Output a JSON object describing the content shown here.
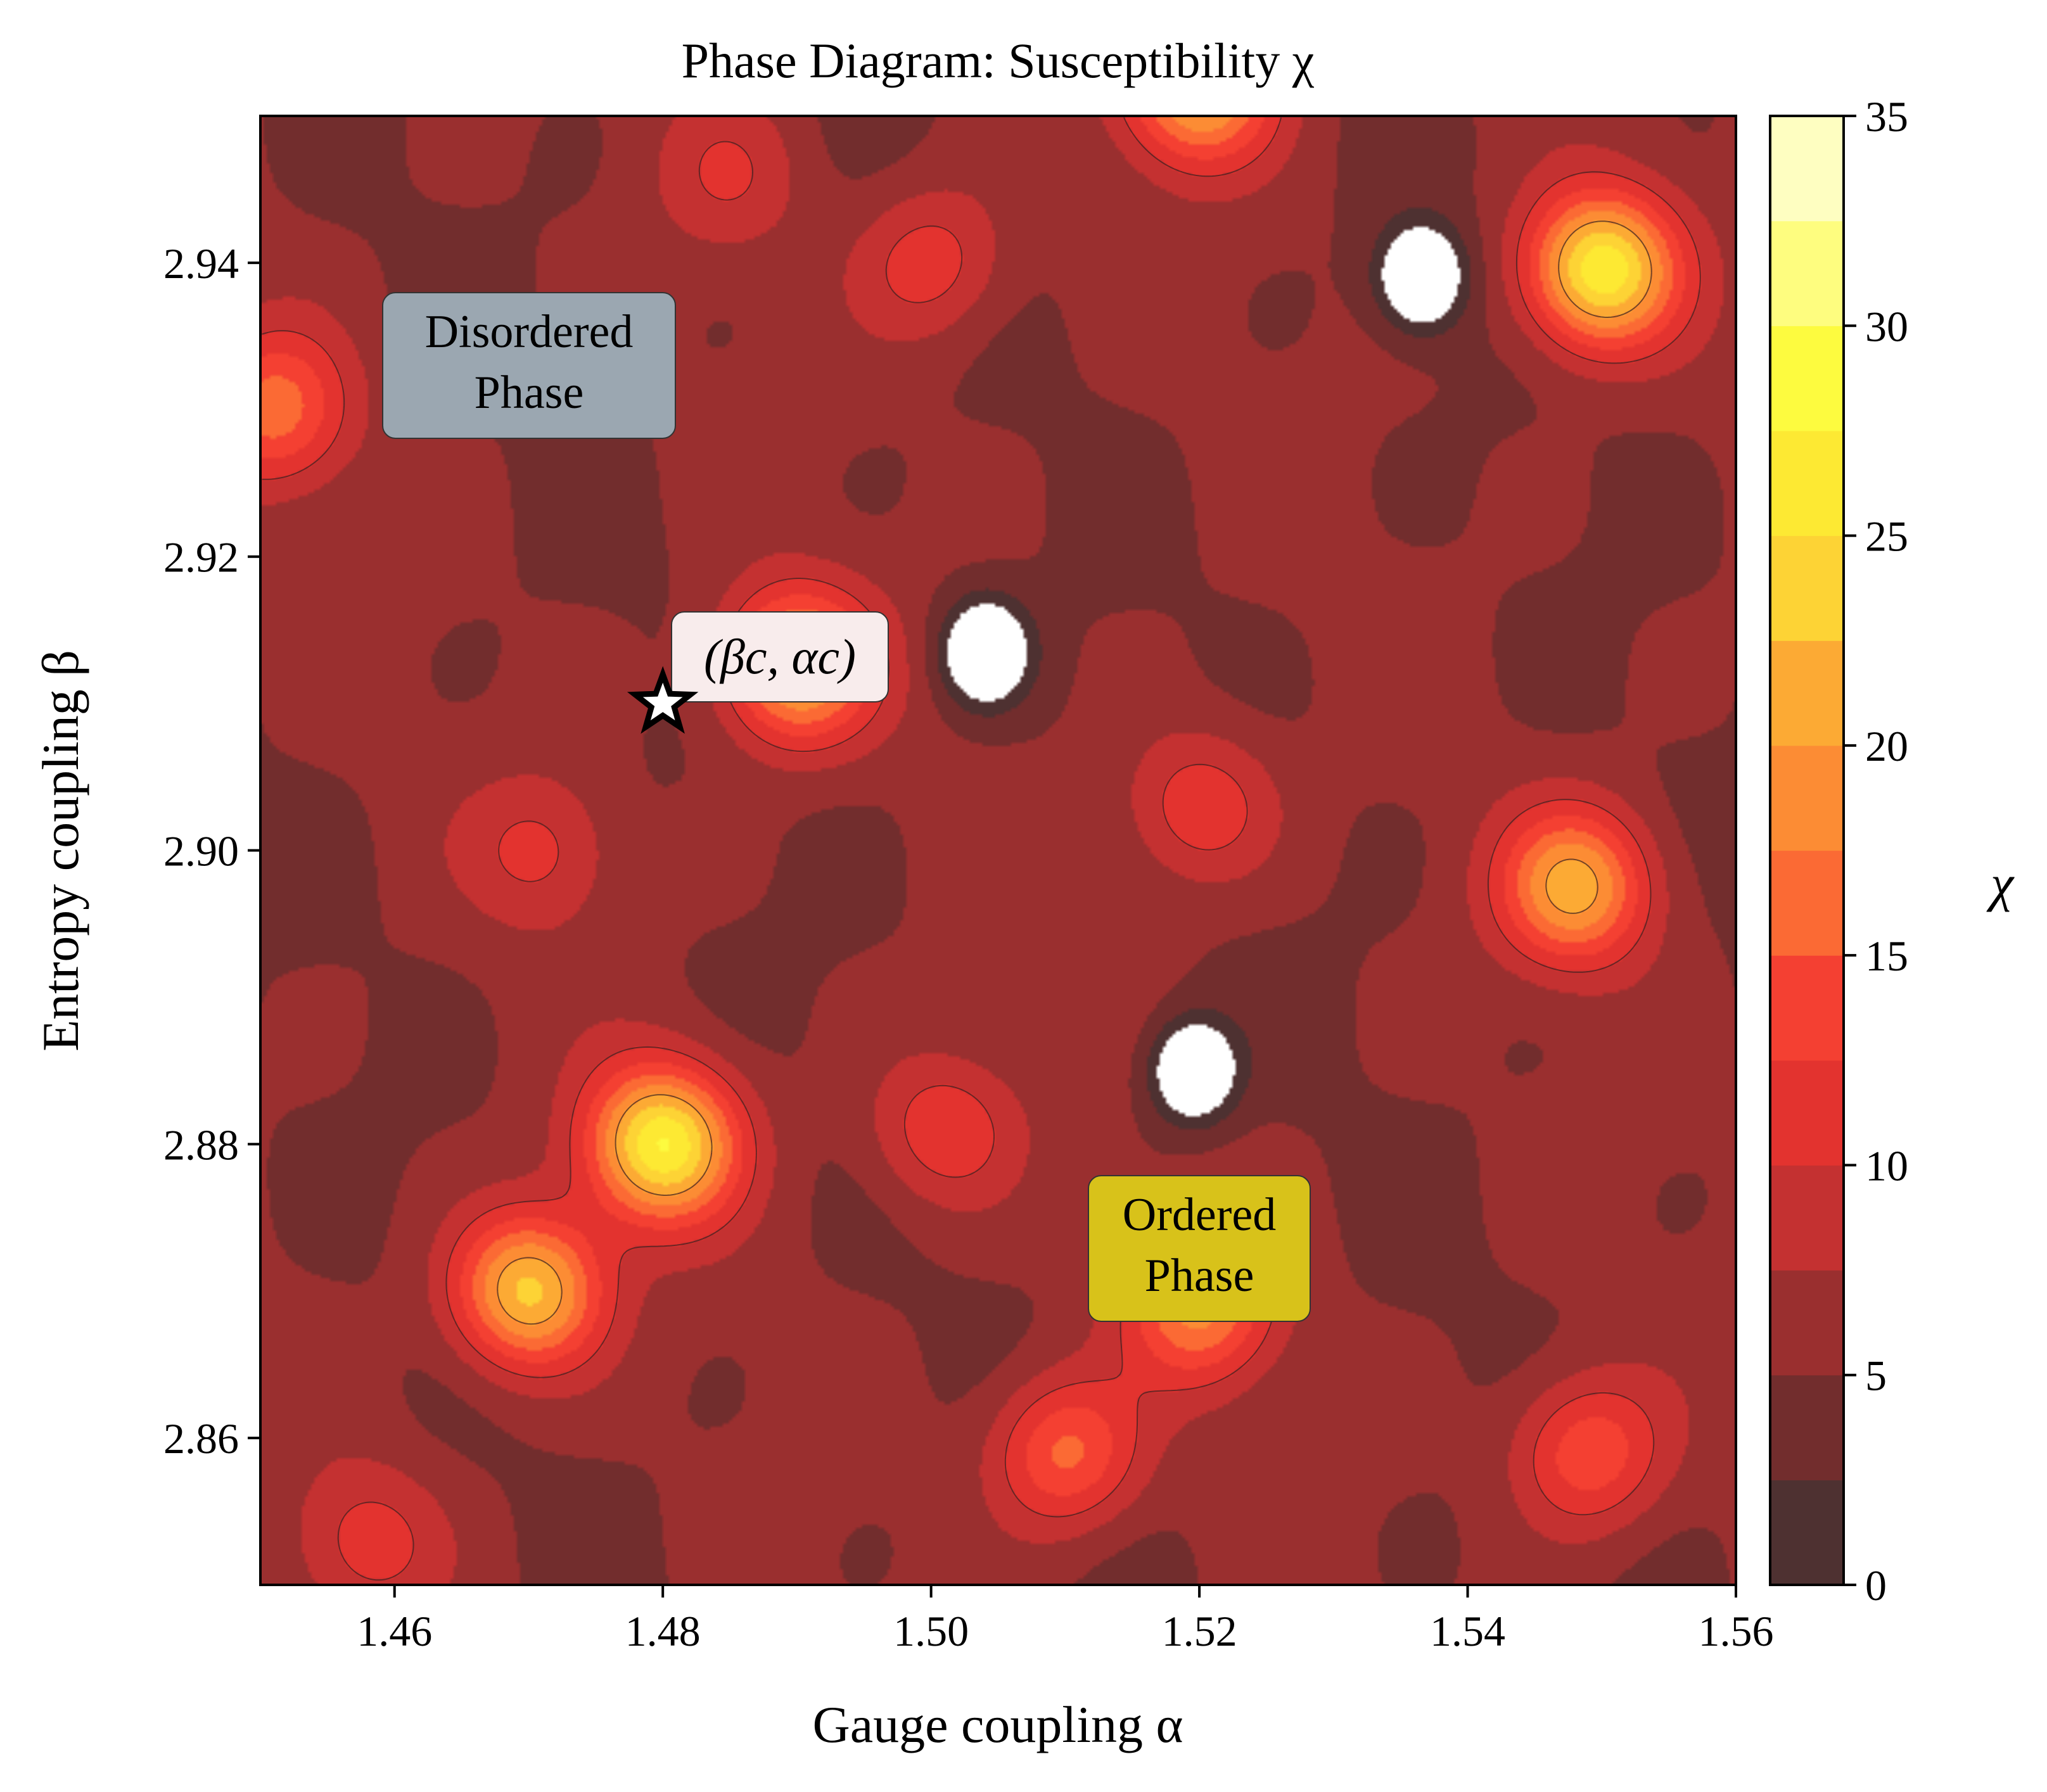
{
  "chart_data": {
    "type": "heatmap",
    "subtype": "filled-contour",
    "title": "Phase Diagram: Susceptibility χ",
    "xlabel": "Gauge coupling α",
    "ylabel": "Entropy coupling β",
    "xlim": [
      1.45,
      1.56
    ],
    "ylim": [
      2.85,
      2.95
    ],
    "xticks": [
      1.46,
      1.48,
      1.5,
      1.52,
      1.54,
      1.56
    ],
    "xtick_labels": [
      "1.46",
      "1.48",
      "1.50",
      "1.52",
      "1.54",
      "1.56"
    ],
    "yticks": [
      2.86,
      2.88,
      2.9,
      2.92,
      2.94
    ],
    "ytick_labels": [
      "2.86",
      "2.88",
      "2.90",
      "2.92",
      "2.94"
    ],
    "grid": false,
    "colormap": "hot_r",
    "colorbar": {
      "label": "χ",
      "range": [
        0,
        35
      ],
      "ticks": [
        0,
        5,
        10,
        15,
        20,
        25,
        30,
        35
      ],
      "tick_labels": [
        "0",
        "5",
        "10",
        "15",
        "20",
        "25",
        "30",
        "35"
      ],
      "levels": [
        0,
        2.5,
        5,
        7.5,
        10,
        12.5,
        15,
        17.5,
        20,
        22.5,
        25,
        27.5,
        30,
        32.5,
        35
      ],
      "colors": [
        "#4e3131",
        "#722d2d",
        "#9a2f2f",
        "#c43131",
        "#e3332f",
        "#f44032",
        "#fb6a34",
        "#fc8c34",
        "#fcaa34",
        "#fdd335",
        "#fde933",
        "#fdfb3f",
        "#fefd7f",
        "#fefec1"
      ],
      "above_max_color": "#ffffff"
    },
    "contour_lines": [
      10,
      20
    ],
    "peaks": [
      {
        "alpha": 1.49,
        "beta": 2.9125,
        "chi": 22.0
      },
      {
        "alpha": 1.48,
        "beta": 2.88,
        "chi": 27.0
      },
      {
        "alpha": 1.47,
        "beta": 2.87,
        "chi": 23.5
      },
      {
        "alpha": 1.55,
        "beta": 2.9395,
        "chi": 27.0
      },
      {
        "alpha": 1.548,
        "beta": 2.8975,
        "chi": 21.0
      },
      {
        "alpha": 1.52,
        "beta": 2.952,
        "chi": 22.0
      },
      {
        "alpha": 1.451,
        "beta": 2.93,
        "chi": 16.0
      },
      {
        "alpha": 1.52,
        "beta": 2.869,
        "chi": 18.0
      },
      {
        "alpha": 1.51,
        "beta": 2.859,
        "chi": 16.0
      },
      {
        "alpha": 1.549,
        "beta": 2.859,
        "chi": 15.0
      },
      {
        "alpha": 1.52,
        "beta": 2.903,
        "chi": 12.5
      },
      {
        "alpha": 1.501,
        "beta": 2.881,
        "chi": 12.5
      },
      {
        "alpha": 1.5,
        "beta": 2.94,
        "chi": 12.0
      },
      {
        "alpha": 1.471,
        "beta": 2.9,
        "chi": 10.5
      },
      {
        "alpha": 1.458,
        "beta": 2.853,
        "chi": 11.0
      },
      {
        "alpha": 1.485,
        "beta": 2.946,
        "chi": 9.5
      }
    ],
    "minima": [
      {
        "alpha": 1.5365,
        "beta": 2.939
      },
      {
        "alpha": 1.504,
        "beta": 2.9135
      },
      {
        "alpha": 1.5195,
        "beta": 2.885
      }
    ],
    "annotations": [
      {
        "text": "Disordered\nPhase",
        "alpha": 1.46,
        "beta": 2.9325,
        "box_color": "#9ba7b1"
      },
      {
        "text": "Ordered\nPhase",
        "alpha": 1.52,
        "beta": 2.8725,
        "box_color": "#d8c21a"
      },
      {
        "text": "(βc, αc)",
        "alpha": 1.4835,
        "beta": 2.913,
        "box_color": "#f8ecec"
      }
    ],
    "critical_point": {
      "alpha": 1.48,
      "beta": 2.91,
      "marker": "star"
    }
  },
  "labels": {
    "title": "Phase Diagram: Susceptibility χ",
    "xlabel": "Gauge coupling α",
    "ylabel": "Entropy coupling β",
    "cbar_label": "χ",
    "disordered_line1": "Disordered",
    "disordered_line2": "Phase",
    "ordered_line1": "Ordered",
    "ordered_line2": "Phase",
    "critical_label": "(βc, αc)"
  }
}
